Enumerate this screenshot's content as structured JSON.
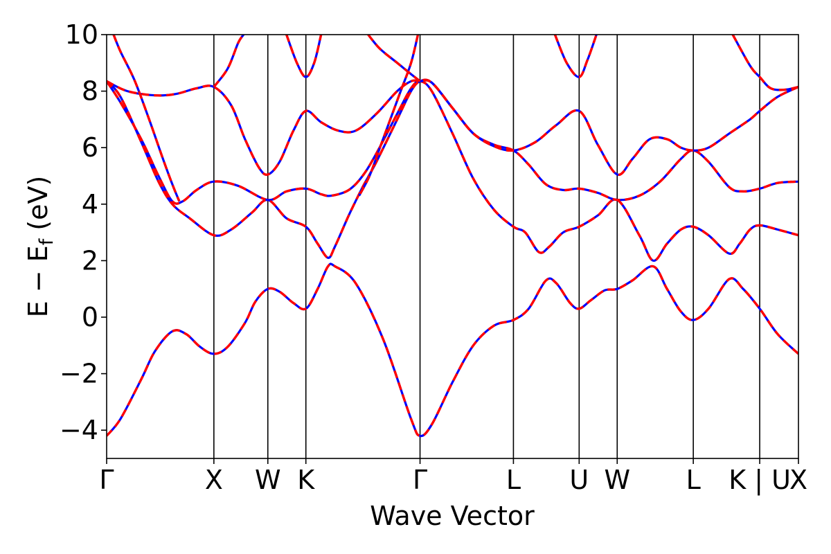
{
  "chart_data": {
    "type": "line",
    "title": "",
    "xlabel": "Wave Vector",
    "ylabel": "E − E",
    "ylabel_subscript": "f",
    "ylabel_unit": " (eV)",
    "ylim": [
      -5,
      10
    ],
    "y_ticks": [
      -4,
      -2,
      0,
      2,
      4,
      6,
      8,
      10
    ],
    "y_tick_labels": [
      "−4",
      "−2",
      "0",
      "2",
      "4",
      "6",
      "8",
      "10"
    ],
    "x_range": [
      0,
      1
    ],
    "k_points": [
      {
        "label": "Γ",
        "x": 0.0
      },
      {
        "label": "X",
        "x": 0.155
      },
      {
        "label": "W",
        "x": 0.233
      },
      {
        "label": "K",
        "x": 0.288
      },
      {
        "label": "Γ",
        "x": 0.453
      },
      {
        "label": "L",
        "x": 0.588
      },
      {
        "label": "U",
        "x": 0.683
      },
      {
        "label": "W",
        "x": 0.738
      },
      {
        "label": "L",
        "x": 0.848
      },
      {
        "label": "K | U",
        "x": 0.944
      },
      {
        "label": "X",
        "x": 1.0
      }
    ],
    "line_colors": {
      "primary": "#ff0000",
      "overlay": "#0000ff"
    },
    "series": [
      {
        "points": [
          [
            0,
            -4.2
          ],
          [
            0.02,
            -3.6
          ],
          [
            0.05,
            -2.2
          ],
          [
            0.07,
            -1.2
          ],
          [
            0.095,
            -0.5
          ],
          [
            0.115,
            -0.6
          ],
          [
            0.135,
            -1.05
          ],
          [
            0.155,
            -1.3
          ],
          [
            0.175,
            -1.05
          ],
          [
            0.2,
            -0.2
          ],
          [
            0.215,
            0.55
          ],
          [
            0.233,
            1.0
          ],
          [
            0.25,
            0.9
          ],
          [
            0.27,
            0.5
          ],
          [
            0.288,
            0.3
          ],
          [
            0.305,
            1.0
          ],
          [
            0.32,
            1.8
          ],
          [
            0.33,
            1.8
          ],
          [
            0.36,
            1.2
          ],
          [
            0.4,
            -0.8
          ],
          [
            0.44,
            -3.6
          ],
          [
            0.453,
            -4.2
          ],
          [
            0.47,
            -3.8
          ],
          [
            0.5,
            -2.3
          ],
          [
            0.53,
            -1.0
          ],
          [
            0.56,
            -0.3
          ],
          [
            0.588,
            -0.1
          ],
          [
            0.61,
            0.3
          ],
          [
            0.635,
            1.3
          ],
          [
            0.65,
            1.2
          ],
          [
            0.67,
            0.5
          ],
          [
            0.683,
            0.3
          ],
          [
            0.7,
            0.6
          ],
          [
            0.72,
            0.95
          ],
          [
            0.738,
            1.0
          ],
          [
            0.76,
            1.3
          ],
          [
            0.79,
            1.8
          ],
          [
            0.81,
            1.0
          ],
          [
            0.83,
            0.2
          ],
          [
            0.848,
            -0.1
          ],
          [
            0.87,
            0.3
          ],
          [
            0.9,
            1.35
          ],
          [
            0.92,
            1.0
          ],
          [
            0.944,
            0.3
          ],
          [
            0.97,
            -0.6
          ],
          [
            1.0,
            -1.3
          ]
        ]
      },
      {
        "points": [
          [
            0,
            8.35
          ],
          [
            0.02,
            7.6
          ],
          [
            0.05,
            6.3
          ],
          [
            0.075,
            5.0
          ],
          [
            0.095,
            4.1
          ],
          [
            0.11,
            4.1
          ],
          [
            0.13,
            4.5
          ],
          [
            0.155,
            4.8
          ],
          [
            0.19,
            4.65
          ],
          [
            0.233,
            4.15
          ],
          [
            0.26,
            4.45
          ],
          [
            0.288,
            4.55
          ],
          [
            0.31,
            4.35
          ],
          [
            0.325,
            4.3
          ],
          [
            0.35,
            4.5
          ],
          [
            0.37,
            5.0
          ],
          [
            0.39,
            5.8
          ],
          [
            0.42,
            7.2
          ],
          [
            0.44,
            8.1
          ],
          [
            0.453,
            8.35
          ],
          [
            0.47,
            8.0
          ],
          [
            0.5,
            6.5
          ],
          [
            0.53,
            4.9
          ],
          [
            0.56,
            3.8
          ],
          [
            0.588,
            3.2
          ],
          [
            0.605,
            3.0
          ],
          [
            0.625,
            2.3
          ],
          [
            0.64,
            2.5
          ],
          [
            0.66,
            3.0
          ],
          [
            0.683,
            3.2
          ],
          [
            0.71,
            3.6
          ],
          [
            0.738,
            4.15
          ],
          [
            0.77,
            2.9
          ],
          [
            0.79,
            2.0
          ],
          [
            0.81,
            2.6
          ],
          [
            0.83,
            3.1
          ],
          [
            0.848,
            3.2
          ],
          [
            0.87,
            2.9
          ],
          [
            0.9,
            2.25
          ],
          [
            0.915,
            2.6
          ],
          [
            0.93,
            3.1
          ],
          [
            0.944,
            3.25
          ],
          [
            0.97,
            3.1
          ],
          [
            1.0,
            2.9
          ]
        ]
      },
      {
        "points": [
          [
            0,
            8.35
          ],
          [
            0.02,
            7.8
          ],
          [
            0.05,
            6.2
          ],
          [
            0.075,
            4.8
          ],
          [
            0.095,
            4.0
          ],
          [
            0.12,
            3.5
          ],
          [
            0.155,
            2.9
          ],
          [
            0.18,
            3.1
          ],
          [
            0.21,
            3.7
          ],
          [
            0.233,
            4.15
          ],
          [
            0.26,
            3.5
          ],
          [
            0.288,
            3.2
          ],
          [
            0.305,
            2.6
          ],
          [
            0.32,
            2.1
          ],
          [
            0.33,
            2.5
          ],
          [
            0.35,
            3.6
          ],
          [
            0.37,
            4.6
          ],
          [
            0.39,
            5.5
          ],
          [
            0.42,
            7.0
          ],
          [
            0.44,
            8.0
          ],
          [
            0.453,
            8.35
          ],
          [
            0.47,
            8.3
          ],
          [
            0.5,
            7.4
          ],
          [
            0.53,
            6.5
          ],
          [
            0.56,
            6.1
          ],
          [
            0.588,
            5.9
          ],
          [
            0.61,
            5.4
          ],
          [
            0.635,
            4.7
          ],
          [
            0.66,
            4.5
          ],
          [
            0.683,
            4.55
          ],
          [
            0.71,
            4.4
          ],
          [
            0.738,
            4.15
          ],
          [
            0.77,
            4.3
          ],
          [
            0.8,
            4.8
          ],
          [
            0.83,
            5.6
          ],
          [
            0.848,
            5.9
          ],
          [
            0.87,
            5.5
          ],
          [
            0.9,
            4.6
          ],
          [
            0.92,
            4.45
          ],
          [
            0.944,
            4.55
          ],
          [
            0.97,
            4.75
          ],
          [
            1.0,
            4.8
          ]
        ]
      },
      {
        "points": [
          [
            0,
            8.35
          ],
          [
            0.03,
            8.0
          ],
          [
            0.07,
            7.85
          ],
          [
            0.1,
            7.9
          ],
          [
            0.13,
            8.1
          ],
          [
            0.155,
            8.15
          ],
          [
            0.18,
            7.5
          ],
          [
            0.2,
            6.3
          ],
          [
            0.22,
            5.3
          ],
          [
            0.233,
            5.05
          ],
          [
            0.25,
            5.5
          ],
          [
            0.27,
            6.6
          ],
          [
            0.288,
            7.3
          ],
          [
            0.31,
            6.9
          ],
          [
            0.335,
            6.6
          ],
          [
            0.36,
            6.6
          ],
          [
            0.39,
            7.2
          ],
          [
            0.42,
            8.0
          ],
          [
            0.44,
            8.35
          ],
          [
            0.453,
            8.35
          ],
          [
            0.47,
            8.3
          ],
          [
            0.5,
            7.4
          ],
          [
            0.53,
            6.5
          ],
          [
            0.56,
            6.05
          ],
          [
            0.588,
            5.9
          ],
          [
            0.62,
            6.2
          ],
          [
            0.65,
            6.8
          ],
          [
            0.683,
            7.3
          ],
          [
            0.71,
            6.1
          ],
          [
            0.738,
            5.05
          ],
          [
            0.76,
            5.6
          ],
          [
            0.785,
            6.3
          ],
          [
            0.81,
            6.3
          ],
          [
            0.83,
            6.0
          ],
          [
            0.848,
            5.9
          ],
          [
            0.87,
            6.0
          ],
          [
            0.9,
            6.5
          ],
          [
            0.93,
            7.0
          ],
          [
            0.944,
            7.3
          ],
          [
            0.97,
            7.8
          ],
          [
            1.0,
            8.15
          ]
        ]
      },
      {
        "points": [
          [
            0.01,
            10.0
          ],
          [
            0.02,
            9.4
          ],
          [
            0.04,
            8.4
          ],
          [
            0.06,
            7.1
          ],
          [
            0.08,
            5.7
          ],
          [
            0.095,
            4.7
          ],
          [
            0.105,
            4.1
          ]
        ]
      },
      {
        "points": [
          [
            0.155,
            8.15
          ],
          [
            0.175,
            8.8
          ],
          [
            0.19,
            9.7
          ],
          [
            0.198,
            10.0
          ]
        ]
      },
      {
        "points": [
          [
            0.26,
            10.0
          ],
          [
            0.275,
            9.0
          ],
          [
            0.288,
            8.5
          ],
          [
            0.3,
            9.0
          ],
          [
            0.31,
            10.0
          ]
        ]
      },
      {
        "points": [
          [
            0.378,
            10.0
          ],
          [
            0.395,
            9.5
          ],
          [
            0.42,
            9.0
          ],
          [
            0.44,
            8.6
          ],
          [
            0.453,
            8.35
          ]
        ]
      },
      {
        "points": [
          [
            0.45,
            10.0
          ],
          [
            0.44,
            9.0
          ],
          [
            0.425,
            8.0
          ],
          [
            0.41,
            7.0
          ],
          [
            0.395,
            6.0
          ],
          [
            0.38,
            5.0
          ],
          [
            0.365,
            4.3
          ]
        ]
      },
      {
        "points": [
          [
            0.648,
            10.0
          ],
          [
            0.665,
            9.0
          ],
          [
            0.683,
            8.5
          ],
          [
            0.695,
            9.1
          ],
          [
            0.708,
            10.0
          ]
        ]
      },
      {
        "points": [
          [
            0.905,
            10.0
          ],
          [
            0.93,
            8.9
          ],
          [
            0.944,
            8.5
          ],
          [
            0.96,
            8.1
          ],
          [
            0.98,
            8.05
          ],
          [
            1.0,
            8.15
          ]
        ]
      }
    ]
  }
}
